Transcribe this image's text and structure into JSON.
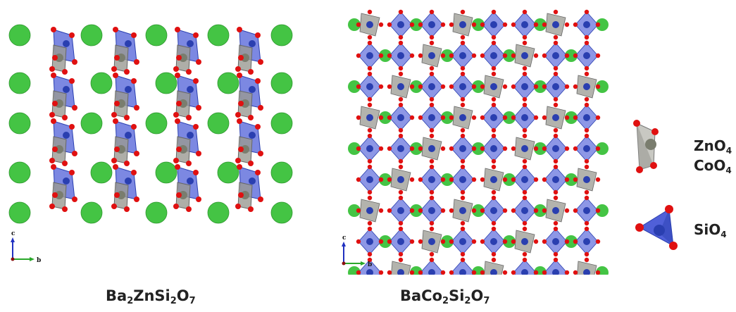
{
  "captions": {
    "left": {
      "prefix": "Ba",
      "s1": "2",
      "mid1": "ZnSi",
      "s2": "2",
      "mid2": "O",
      "s3": "7"
    },
    "right": {
      "prefix": "BaCo",
      "s1": "2",
      "mid1": "Si",
      "s2": "2",
      "mid2": "O",
      "s3": "7"
    }
  },
  "legend": {
    "zn": {
      "base": "ZnO",
      "sub": "4"
    },
    "co": {
      "base": "CoO",
      "sub": "4"
    },
    "si": {
      "base": "SiO",
      "sub": "4"
    }
  },
  "axes": {
    "up": "c",
    "right": "b"
  },
  "colors": {
    "ba": "#44c444",
    "o": "#e01010",
    "si": "#2a3fb0",
    "si_poly": "#5060d8",
    "zn_poly": "#9a9a92",
    "zn": "#7a7d6e"
  }
}
